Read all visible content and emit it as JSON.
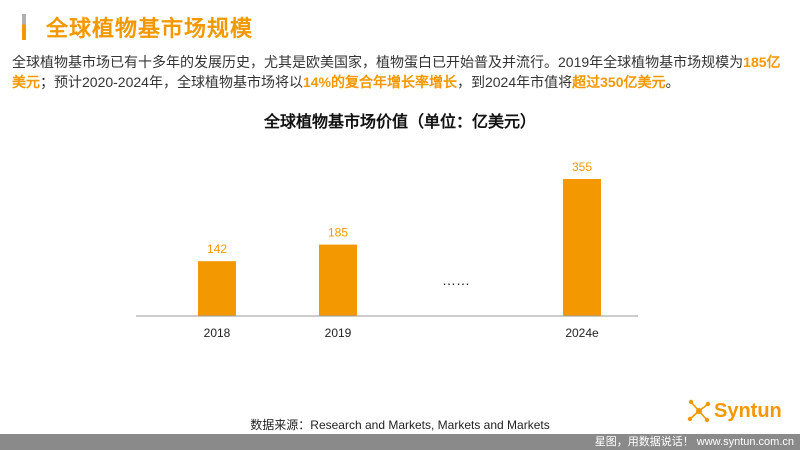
{
  "header": {
    "title": "全球植物基市场规模"
  },
  "intro": {
    "part1": "全球植物基市场已有十多年的发展历史，尤其是欧美国家，植物蛋白已开始普及并流行。2019年全球植物基市场规模为",
    "hl1": "185亿美元",
    "part2": "；预计2020-2024年，全球植物基市场将以",
    "hl2": "14%的复合年增长率增长",
    "part3": "，到2024年市值将",
    "hl3": "超过350亿美元",
    "part4": "。"
  },
  "chart_data": {
    "type": "bar",
    "title": "全球植物基市场价值（单位：亿美元）",
    "categories": [
      "2018",
      "2019",
      "2024e"
    ],
    "values": [
      142,
      185,
      355
    ],
    "gap_label": "……",
    "ylim": [
      0,
      370
    ],
    "xlabel": "",
    "ylabel": "",
    "grid": false,
    "bar_color": "#f39800"
  },
  "source": "数据来源：Research and Markets, Markets and Markets",
  "logo": {
    "text": "Syntun"
  },
  "footer": {
    "text": "星图，用数据说话！ www.syntun.com.cn"
  },
  "colors": {
    "accent": "#f39800",
    "footer_bg": "#8a8a8a"
  }
}
